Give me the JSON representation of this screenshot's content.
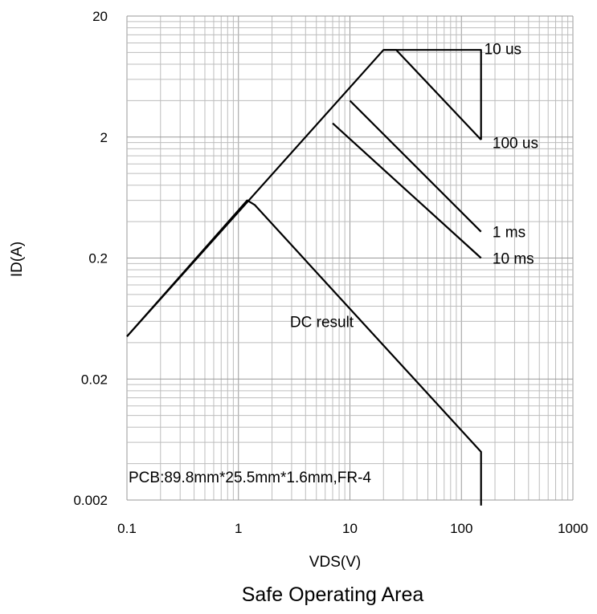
{
  "chart_data": {
    "type": "line",
    "title": "Safe Operating Area",
    "xlabel": "VDS(V)",
    "ylabel": "ID(A)",
    "xscale": "log",
    "yscale": "log",
    "xlim": [
      0.1,
      1000
    ],
    "ylim": [
      0.002,
      20
    ],
    "grid": true,
    "x_ticks": [
      "0.1",
      "1",
      "10",
      "100",
      "1000"
    ],
    "y_ticks": [
      "0.002",
      "0.02",
      "0.2",
      "2",
      "20"
    ],
    "annotation": "PCB:89.8mm*25.5mm*1.6mm,FR-4",
    "series": [
      {
        "label": "DC result",
        "points": [
          [
            0.1,
            0.045
          ],
          [
            1.2,
            0.6
          ],
          [
            1.4,
            0.55
          ],
          [
            150,
            0.005
          ],
          [
            150,
            0.0018
          ]
        ],
        "label_at": [
          2.9,
          0.06
        ]
      },
      {
        "label": "10 ms",
        "points": [
          [
            7,
            2.6
          ],
          [
            150,
            0.2
          ]
        ],
        "label_at": [
          190,
          0.2
        ]
      },
      {
        "label": "1 ms",
        "points": [
          [
            10,
            4.0
          ],
          [
            150,
            0.33
          ]
        ],
        "label_at": [
          190,
          0.33
        ]
      },
      {
        "label": "100 us",
        "points": [
          [
            20,
            10.5
          ],
          [
            26,
            10.5
          ],
          [
            150,
            1.9
          ]
        ],
        "label_at": [
          190,
          1.8
        ]
      },
      {
        "label": "10 us",
        "points": [
          [
            0.1,
            0.045
          ],
          [
            20,
            10.5
          ],
          [
            150,
            10.5
          ],
          [
            150,
            1.9
          ]
        ],
        "label_at": [
          160,
          10.8
        ]
      }
    ]
  }
}
